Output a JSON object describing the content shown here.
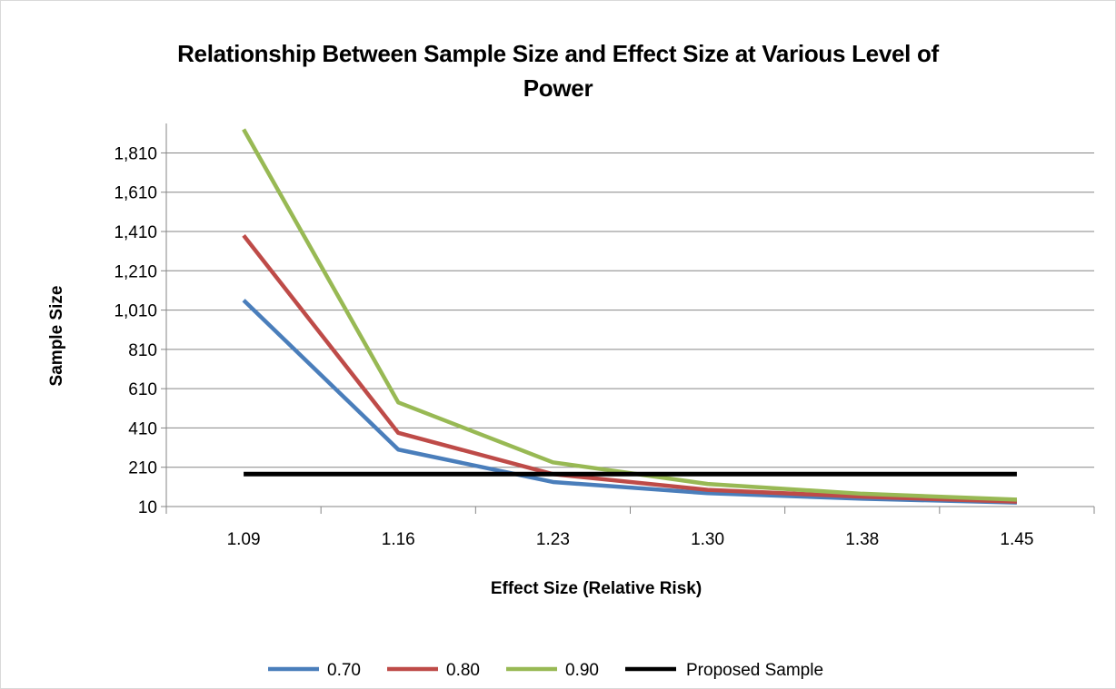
{
  "chart_data": {
    "type": "line",
    "title_lines": [
      "Relationship Between Sample Size and Effect Size at Various Level of",
      "Power"
    ],
    "xlabel": "Effect Size (Relative Risk)",
    "ylabel": "Sample Size",
    "categories": [
      "1.09",
      "1.16",
      "1.23",
      "1.30",
      "1.38",
      "1.45"
    ],
    "y_ticks": [
      "10",
      "210",
      "410",
      "610",
      "810",
      "1,010",
      "1,210",
      "1,410",
      "1,610",
      "1,810"
    ],
    "ylim": [
      10,
      1960
    ],
    "grid": true,
    "legend_position": "bottom",
    "series": [
      {
        "name": "0.70",
        "color": "#4a7ebb",
        "values": [
          1060,
          300,
          135,
          78,
          50,
          30
        ]
      },
      {
        "name": "0.80",
        "color": "#be4b48",
        "values": [
          1390,
          385,
          175,
          95,
          60,
          35
        ]
      },
      {
        "name": "0.90",
        "color": "#98b954",
        "values": [
          1930,
          540,
          235,
          125,
          75,
          45
        ]
      },
      {
        "name": "Proposed Sample",
        "color": "#000000",
        "values": [
          175,
          175,
          175,
          175,
          175,
          175
        ]
      }
    ]
  }
}
